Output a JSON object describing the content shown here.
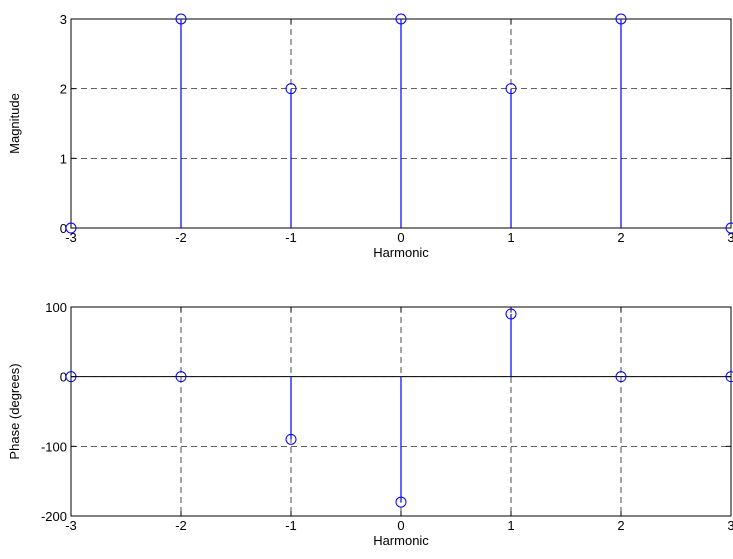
{
  "chart_data": [
    {
      "type": "stem",
      "title": "",
      "xlabel": "Harmonic",
      "ylabel": "Magnitude",
      "xlim": [
        -3,
        3
      ],
      "ylim": [
        0,
        3
      ],
      "xticks": [
        -3,
        -2,
        -1,
        0,
        1,
        2,
        3
      ],
      "yticks": [
        0,
        1,
        2,
        3
      ],
      "grid": true,
      "x": [
        -3,
        -2,
        -1,
        0,
        1,
        2,
        3
      ],
      "y": [
        0,
        3,
        2,
        3,
        2,
        3,
        0
      ],
      "color": "#0000ff"
    },
    {
      "type": "stem",
      "title": "",
      "xlabel": "Harmonic",
      "ylabel": "Phase (degrees)",
      "xlim": [
        -3,
        3
      ],
      "ylim": [
        -200,
        100
      ],
      "xticks": [
        -3,
        -2,
        -1,
        0,
        1,
        2,
        3
      ],
      "yticks": [
        -200,
        -100,
        0,
        100
      ],
      "grid": true,
      "x": [
        -3,
        -2,
        -1,
        0,
        1,
        2,
        3
      ],
      "y": [
        0,
        0,
        -90,
        -180,
        90,
        0,
        0
      ],
      "color": "#0000ff"
    }
  ]
}
